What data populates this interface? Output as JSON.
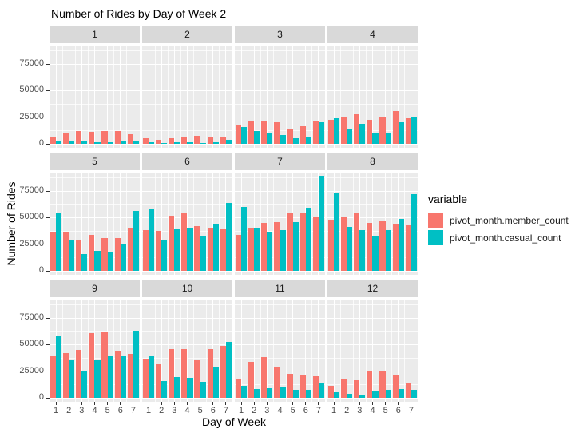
{
  "chart_data": {
    "type": "bar",
    "title": "Number of Rides by Day of Week 2",
    "xlabel": "Day of Week",
    "ylabel": "Number of Rides",
    "legend_title": "variable",
    "legend_position": "right",
    "grid": true,
    "panel_bg": "#EBEBEB",
    "strip_bg": "#D9D9D9",
    "y_ticks": [
      0,
      25000,
      50000,
      75000
    ],
    "ylim": [
      0,
      92000
    ],
    "categories": [
      "1",
      "2",
      "3",
      "4",
      "5",
      "6",
      "7"
    ],
    "series": [
      {
        "name": "pivot_month.member_count",
        "color": "#F8766D"
      },
      {
        "name": "pivot_month.casual_count",
        "color": "#00BFC4"
      }
    ],
    "facets": [
      {
        "label": "1",
        "member": [
          7000,
          10500,
          12000,
          11000,
          12000,
          12000,
          9000
        ],
        "casual": [
          2000,
          2500,
          2000,
          1500,
          1500,
          2500,
          3000
        ]
      },
      {
        "label": "2",
        "member": [
          5000,
          4000,
          5000,
          7000,
          7500,
          7000,
          7000
        ],
        "casual": [
          1500,
          1000,
          1200,
          1200,
          1000,
          1500,
          4000
        ]
      },
      {
        "label": "3",
        "member": [
          17000,
          22000,
          21000,
          20500,
          14000,
          16500,
          21000
        ],
        "casual": [
          16000,
          12000,
          9500,
          8000,
          5000,
          7000,
          20500
        ]
      },
      {
        "label": "4",
        "member": [
          22500,
          25000,
          28000,
          22500,
          24500,
          31000,
          24000
        ],
        "casual": [
          24000,
          14500,
          19000,
          10500,
          10500,
          20500,
          25500
        ]
      },
      {
        "label": "5",
        "member": [
          36500,
          36500,
          29500,
          33500,
          30500,
          31000,
          39500
        ],
        "casual": [
          54500,
          29000,
          15500,
          19000,
          18000,
          25000,
          56500
        ]
      },
      {
        "label": "6",
        "member": [
          38000,
          37500,
          52000,
          55000,
          42000,
          40000,
          39000
        ],
        "casual": [
          58500,
          28500,
          39000,
          40500,
          33000,
          44000,
          63500
        ]
      },
      {
        "label": "7",
        "member": [
          33500,
          39500,
          45000,
          45500,
          55000,
          54000,
          50000
        ],
        "casual": [
          60000,
          40500,
          36500,
          38000,
          46000,
          59000,
          89000
        ]
      },
      {
        "label": "8",
        "member": [
          48000,
          51000,
          55000,
          45000,
          47000,
          44000,
          43000
        ],
        "casual": [
          73000,
          41000,
          38000,
          33000,
          38000,
          48500,
          72000
        ]
      },
      {
        "label": "9",
        "member": [
          39500,
          42000,
          45000,
          61000,
          61500,
          44500,
          41000
        ],
        "casual": [
          58000,
          36000,
          24500,
          35500,
          39000,
          39000,
          63000
        ]
      },
      {
        "label": "10",
        "member": [
          37000,
          32000,
          45500,
          45500,
          35500,
          46000,
          48500
        ],
        "casual": [
          40000,
          16000,
          19500,
          19000,
          15000,
          29000,
          52500
        ]
      },
      {
        "label": "11",
        "member": [
          18000,
          33500,
          38000,
          29500,
          22500,
          22000,
          20500
        ],
        "casual": [
          11500,
          8500,
          9000,
          9500,
          7500,
          7500,
          13500
        ]
      },
      {
        "label": "12",
        "member": [
          11000,
          17000,
          16500,
          25500,
          25500,
          21000,
          13500
        ],
        "casual": [
          5000,
          4000,
          2500,
          6500,
          7500,
          8000,
          7500
        ]
      }
    ]
  }
}
